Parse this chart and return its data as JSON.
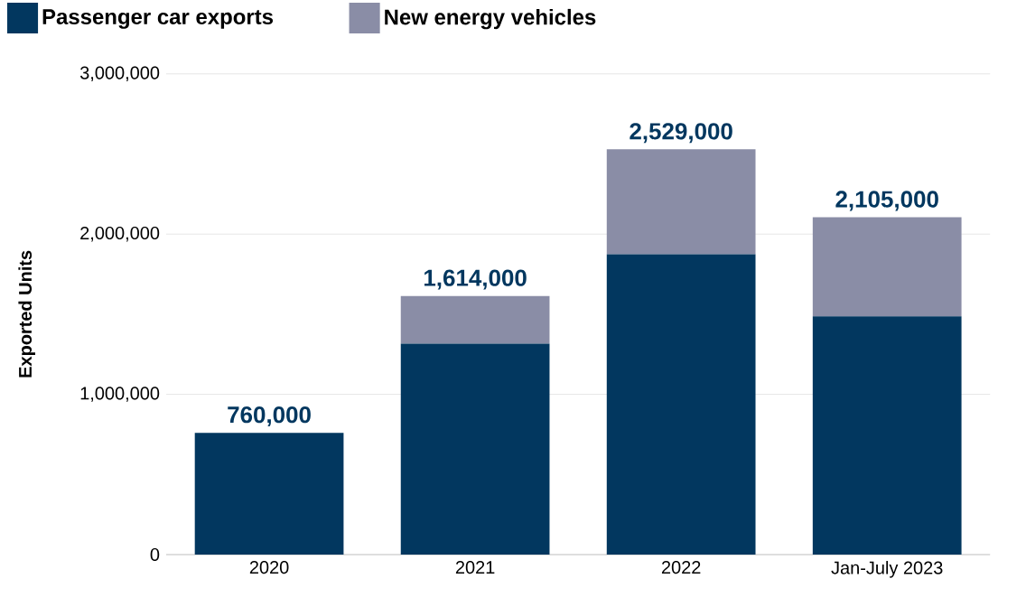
{
  "chart_data": {
    "type": "bar",
    "stacked": true,
    "ylabel": "Exported Units",
    "categories": [
      "2020",
      "2021",
      "2022",
      "Jan-July 2023"
    ],
    "series": [
      {
        "name": "Passenger car exports",
        "color": "#02375f",
        "values": [
          760000,
          1316000,
          1874000,
          1486000
        ]
      },
      {
        "name": "New energy vehicles",
        "color": "#8a8da6",
        "values": [
          null,
          298000,
          655000,
          619000
        ]
      }
    ],
    "totals": [
      "760,000",
      "1,614,000",
      "2,529,000",
      "2,105,000"
    ],
    "ylim": [
      0,
      3000000
    ],
    "yticks": [
      {
        "value": 0,
        "label": "0"
      },
      {
        "value": 1000000,
        "label": "1,000,000"
      },
      {
        "value": 2000000,
        "label": "2,000,000"
      },
      {
        "value": 3000000,
        "label": "3,000,000"
      }
    ],
    "grid": "y",
    "legend": "top left"
  }
}
